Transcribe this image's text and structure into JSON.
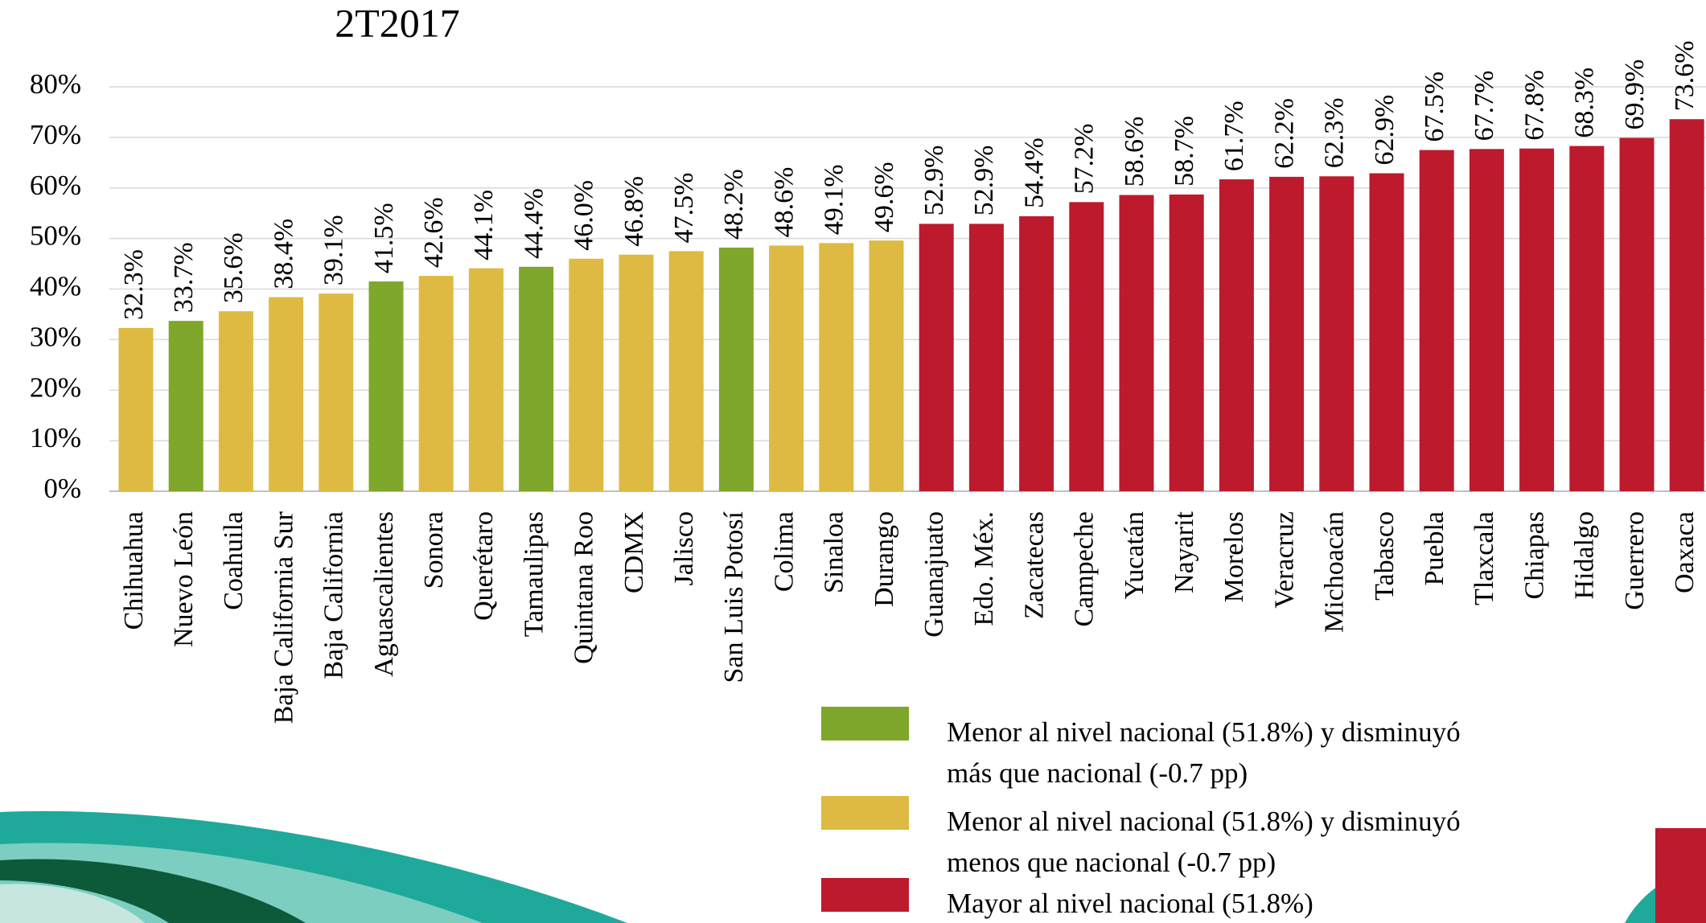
{
  "chart_data": {
    "type": "bar",
    "title": "2T2017",
    "categories": [
      "Chihuahua",
      "Nuevo León",
      "Coahuila",
      "Baja California Sur",
      "Baja California",
      "Aguascalientes",
      "Sonora",
      "Querétaro",
      "Tamaulipas",
      "Quintana Roo",
      "CDMX",
      "Jalisco",
      "San Luis Potosí",
      "Colima",
      "Sinaloa",
      "Durango",
      "Guanajuato",
      "Edo. Méx.",
      "Zacatecas",
      "Campeche",
      "Yucatán",
      "Nayarit",
      "Morelos",
      "Veracruz",
      "Michoacán",
      "Tabasco",
      "Puebla",
      "Tlaxcala",
      "Chiapas",
      "Hidalgo",
      "Guerrero",
      "Oaxaca"
    ],
    "values": [
      32.3,
      33.7,
      35.6,
      38.4,
      39.1,
      41.5,
      42.6,
      44.1,
      44.4,
      46.0,
      46.8,
      47.5,
      48.2,
      48.6,
      49.1,
      49.6,
      52.9,
      52.9,
      54.4,
      57.2,
      58.6,
      58.7,
      61.7,
      62.2,
      62.3,
      62.9,
      67.5,
      67.7,
      67.8,
      68.3,
      69.9,
      73.6
    ],
    "value_labels": [
      "32.3%",
      "33.7%",
      "35.6%",
      "38.4%",
      "39.1%",
      "41.5%",
      "42.6%",
      "44.1%",
      "44.4%",
      "46.0%",
      "46.8%",
      "47.5%",
      "48.2%",
      "48.6%",
      "49.1%",
      "49.6%",
      "52.9%",
      "52.9%",
      "54.4%",
      "57.2%",
      "58.6%",
      "58.7%",
      "61.7%",
      "62.2%",
      "62.3%",
      "62.9%",
      "67.5%",
      "67.7%",
      "67.8%",
      "68.3%",
      "69.9%",
      "73.6%"
    ],
    "colors": [
      "#dfba42",
      "#7fa72b",
      "#dfba42",
      "#dfba42",
      "#dfba42",
      "#7fa72b",
      "#dfba42",
      "#dfba42",
      "#7fa72b",
      "#dfba42",
      "#dfba42",
      "#dfba42",
      "#7fa72b",
      "#dfba42",
      "#dfba42",
      "#dfba42",
      "#bd1a2e",
      "#bd1a2e",
      "#bd1a2e",
      "#bd1a2e",
      "#bd1a2e",
      "#bd1a2e",
      "#bd1a2e",
      "#bd1a2e",
      "#bd1a2e",
      "#bd1a2e",
      "#bd1a2e",
      "#bd1a2e",
      "#bd1a2e",
      "#bd1a2e",
      "#bd1a2e",
      "#bd1a2e"
    ],
    "ylim": [
      0,
      80
    ],
    "yticks": [
      {
        "value": 0,
        "label": "0%"
      },
      {
        "value": 10,
        "label": "10%"
      },
      {
        "value": 20,
        "label": "20%"
      },
      {
        "value": 30,
        "label": "30%"
      },
      {
        "value": 40,
        "label": "40%"
      },
      {
        "value": 50,
        "label": "50%"
      },
      {
        "value": 60,
        "label": "60%"
      },
      {
        "value": 70,
        "label": "70%"
      },
      {
        "value": 80,
        "label": "80%"
      }
    ],
    "grid": true,
    "legend": [
      {
        "color": "#7fa72b",
        "lines": [
          "Menor al nivel nacional (51.8%) y disminuyó",
          "más que nacional (-0.7 pp)"
        ]
      },
      {
        "color": "#dfba42",
        "lines": [
          "Menor al nivel nacional (51.8%) y disminuyó",
          "menos que nacional (-0.7 pp)"
        ]
      },
      {
        "color": "#bd1a2e",
        "lines": [
          "Mayor al nivel nacional (51.8%)"
        ]
      }
    ]
  }
}
